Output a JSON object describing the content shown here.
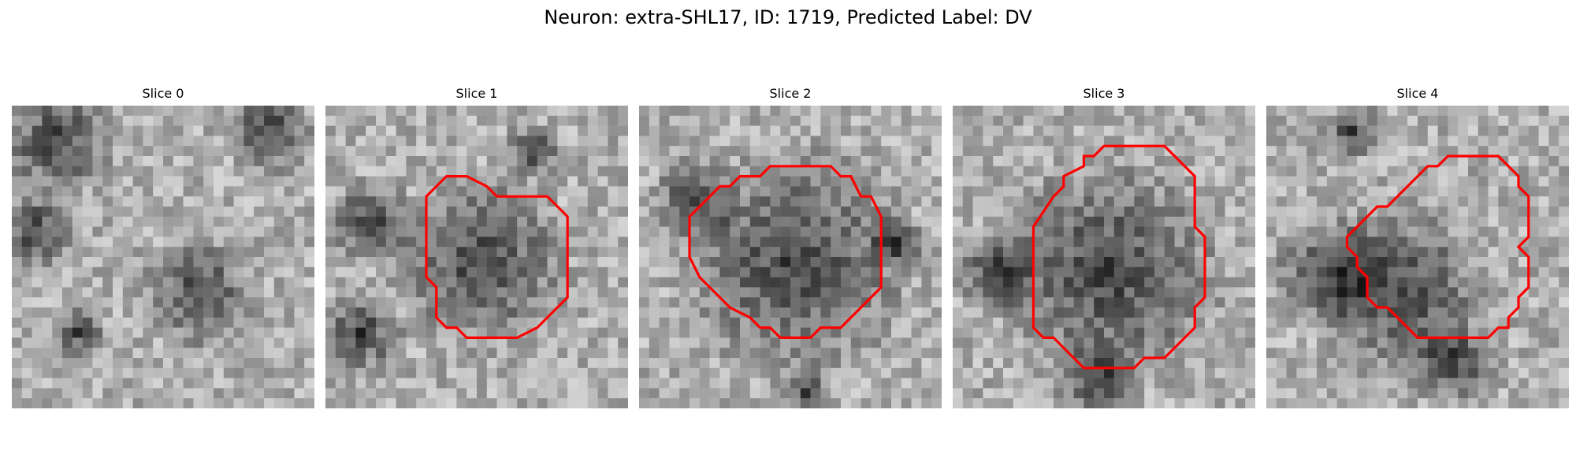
{
  "figure": {
    "title": "Neuron: extra-SHL17, ID: 1719, Predicted Label: DV"
  },
  "panels": [
    {
      "title": "Slice 0",
      "has_outline": false
    },
    {
      "title": "Slice 1",
      "has_outline": true
    },
    {
      "title": "Slice 2",
      "has_outline": true
    },
    {
      "title": "Slice 3",
      "has_outline": true
    },
    {
      "title": "Slice 4",
      "has_outline": true
    }
  ],
  "colors": {
    "outline": "#ff0000"
  }
}
